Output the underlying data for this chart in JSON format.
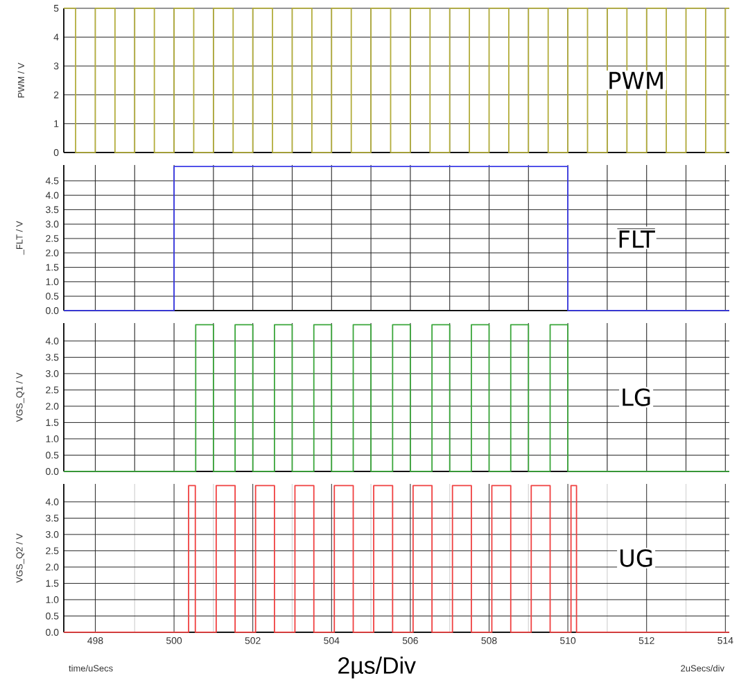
{
  "chart_data": [
    {
      "type": "step",
      "ylabel": "PWM / V",
      "xlim": [
        497.2,
        514.1
      ],
      "ylim": [
        0,
        5
      ],
      "yticks": [
        0,
        1,
        2,
        3,
        4,
        5
      ],
      "xticks": [
        {
          "value": 498,
          "label": null
        },
        {
          "value": 499,
          "label": null
        },
        {
          "value": 500,
          "label": null
        },
        {
          "value": 501,
          "label": null
        },
        {
          "value": 502,
          "label": null
        },
        {
          "value": 503,
          "label": null
        },
        {
          "value": 504,
          "label": null
        },
        {
          "value": 505,
          "label": null
        },
        {
          "value": 506,
          "label": null
        },
        {
          "value": 507,
          "label": null
        },
        {
          "value": 508,
          "label": null
        },
        {
          "value": 509,
          "label": null
        },
        {
          "value": 510,
          "label": null
        },
        {
          "value": 511,
          "label": null
        },
        {
          "value": 512,
          "label": null
        },
        {
          "value": 513,
          "label": null
        },
        {
          "value": 514,
          "label": null
        }
      ],
      "tick_labels": "y",
      "grid": true,
      "annotations": [
        "PWM"
      ],
      "series": [
        {
          "color": "#b3ad3c",
          "x": [
            497.2,
            497.5,
            498,
            498.5,
            499,
            499.5,
            500,
            500.5,
            501,
            501.5,
            502,
            502.5,
            503,
            503.5,
            504,
            504.5,
            505,
            505.5,
            506,
            506.5,
            507,
            507.5,
            508,
            508.5,
            509,
            509.5,
            510,
            510.5,
            511,
            511.5,
            512,
            512.5,
            513,
            513.5,
            514,
            514.1
          ],
          "values": [
            5,
            0,
            5,
            0,
            5,
            0,
            5,
            0,
            5,
            0,
            5,
            0,
            5,
            0,
            5,
            0,
            5,
            0,
            5,
            0,
            5,
            0,
            5,
            0,
            5,
            0,
            5,
            0,
            5,
            0,
            5,
            0,
            5,
            0,
            5,
            5
          ]
        }
      ]
    },
    {
      "type": "step",
      "ylabel": "_FLT / V",
      "xlim": [
        497.2,
        514.1
      ],
      "ylim": [
        0,
        5.05
      ],
      "yticks": [
        {
          "value": 0,
          "label": "0.0"
        },
        {
          "value": 0.5,
          "label": "0.5"
        },
        {
          "value": 1,
          "label": "1.0"
        },
        {
          "value": 1.5,
          "label": "1.5"
        },
        {
          "value": 2,
          "label": "2.0"
        },
        {
          "value": 2.5,
          "label": "2.5"
        },
        {
          "value": 3,
          "label": "3.0"
        },
        {
          "value": 3.5,
          "label": "3.5"
        },
        {
          "value": 4,
          "label": "4.0"
        },
        {
          "value": 4.5,
          "label": "4.5"
        }
      ],
      "xticks": [
        {
          "value": 498,
          "label": null
        },
        {
          "value": 499,
          "label": null
        },
        {
          "value": 500,
          "label": null
        },
        {
          "value": 501,
          "label": null
        },
        {
          "value": 502,
          "label": null
        },
        {
          "value": 503,
          "label": null
        },
        {
          "value": 504,
          "label": null
        },
        {
          "value": 505,
          "label": null
        },
        {
          "value": 506,
          "label": null
        },
        {
          "value": 507,
          "label": null
        },
        {
          "value": 508,
          "label": null
        },
        {
          "value": 509,
          "label": null
        },
        {
          "value": 510,
          "label": null
        },
        {
          "value": 511,
          "label": null
        },
        {
          "value": 512,
          "label": null
        },
        {
          "value": 513,
          "label": null
        },
        {
          "value": 514,
          "label": null
        }
      ],
      "tick_labels": "y",
      "grid": true,
      "annotations": [
        "FLT"
      ],
      "series": [
        {
          "color": "#3a3ae6",
          "x": [
            497.2,
            500,
            510,
            514.1
          ],
          "values": [
            0,
            5,
            0,
            0
          ]
        }
      ]
    },
    {
      "type": "step",
      "ylabel": "VGS_Q1 / V",
      "xlim": [
        497.2,
        514.1
      ],
      "ylim": [
        0,
        4.55
      ],
      "yticks": [
        {
          "value": 0,
          "label": "0.0"
        },
        {
          "value": 0.5,
          "label": "0.5"
        },
        {
          "value": 1,
          "label": "1.0"
        },
        {
          "value": 1.5,
          "label": "1.5"
        },
        {
          "value": 2,
          "label": "2.0"
        },
        {
          "value": 2.5,
          "label": "2.5"
        },
        {
          "value": 3,
          "label": "3.0"
        },
        {
          "value": 3.5,
          "label": "3.5"
        },
        {
          "value": 4,
          "label": "4.0"
        }
      ],
      "xticks": [
        {
          "value": 498,
          "label": null
        },
        {
          "value": 499,
          "label": null
        },
        {
          "value": 500,
          "label": null
        },
        {
          "value": 501,
          "label": null
        },
        {
          "value": 502,
          "label": null
        },
        {
          "value": 503,
          "label": null
        },
        {
          "value": 504,
          "label": null
        },
        {
          "value": 505,
          "label": null
        },
        {
          "value": 506,
          "label": null
        },
        {
          "value": 507,
          "label": null
        },
        {
          "value": 508,
          "label": null
        },
        {
          "value": 509,
          "label": null
        },
        {
          "value": 510,
          "label": null
        },
        {
          "value": 511,
          "label": null
        },
        {
          "value": 512,
          "label": null
        },
        {
          "value": 513,
          "label": null
        },
        {
          "value": 514,
          "label": null
        }
      ],
      "tick_labels": "y",
      "grid": true,
      "annotations": [
        "LG"
      ],
      "series": [
        {
          "color": "#3aa63a",
          "x": [
            497.2,
            500.55,
            501,
            501.55,
            502,
            502.55,
            503,
            503.55,
            504,
            504.55,
            505,
            505.55,
            506,
            506.55,
            507,
            507.55,
            508,
            508.55,
            509,
            509.55,
            510,
            514.1
          ],
          "values": [
            0,
            4.5,
            0,
            4.5,
            0,
            4.5,
            0,
            4.5,
            0,
            4.5,
            0,
            4.5,
            0,
            4.5,
            0,
            4.5,
            0,
            4.5,
            0,
            4.5,
            0,
            0
          ]
        }
      ]
    },
    {
      "type": "step",
      "ylabel": "VGS_Q2 / V",
      "xlabel": "time/uSecs",
      "xlim": [
        497.2,
        514.1
      ],
      "ylim": [
        0,
        4.55
      ],
      "yticks": [
        {
          "value": 0,
          "label": "0.0"
        },
        {
          "value": 0.5,
          "label": "0.5"
        },
        {
          "value": 1,
          "label": "1.0"
        },
        {
          "value": 1.5,
          "label": "1.5"
        },
        {
          "value": 2,
          "label": "2.0"
        },
        {
          "value": 2.5,
          "label": "2.5"
        },
        {
          "value": 3,
          "label": "3.0"
        },
        {
          "value": 3.5,
          "label": "3.5"
        },
        {
          "value": 4,
          "label": "4.0"
        }
      ],
      "xticks": [
        498,
        {
          "value": 499,
          "label": null
        },
        500,
        {
          "value": 501,
          "label": null
        },
        502,
        {
          "value": 503,
          "label": null
        },
        504,
        {
          "value": 505,
          "label": null
        },
        506,
        {
          "value": 507,
          "label": null
        },
        508,
        {
          "value": 509,
          "label": null
        },
        510,
        {
          "value": 511,
          "label": null
        },
        512,
        {
          "value": 513,
          "label": null
        },
        514
      ],
      "grid": true,
      "annotations": [
        "UG",
        "2µs/Div",
        "2uSecs/div"
      ],
      "series": [
        {
          "color": "#f04040",
          "x": [
            497.2,
            500.37,
            500.54,
            501.07,
            501.55,
            502.07,
            502.55,
            503.07,
            503.55,
            504.07,
            504.55,
            505.07,
            505.55,
            506.07,
            506.55,
            507.07,
            507.55,
            508.07,
            508.55,
            509.07,
            509.55,
            510.08,
            510.22,
            514.1
          ],
          "values": [
            0,
            4.5,
            0,
            4.5,
            0,
            4.5,
            0,
            4.5,
            0,
            4.5,
            0,
            4.5,
            0,
            4.5,
            0,
            4.5,
            0,
            4.5,
            0,
            4.5,
            0,
            4.5,
            0,
            0
          ]
        }
      ]
    }
  ]
}
